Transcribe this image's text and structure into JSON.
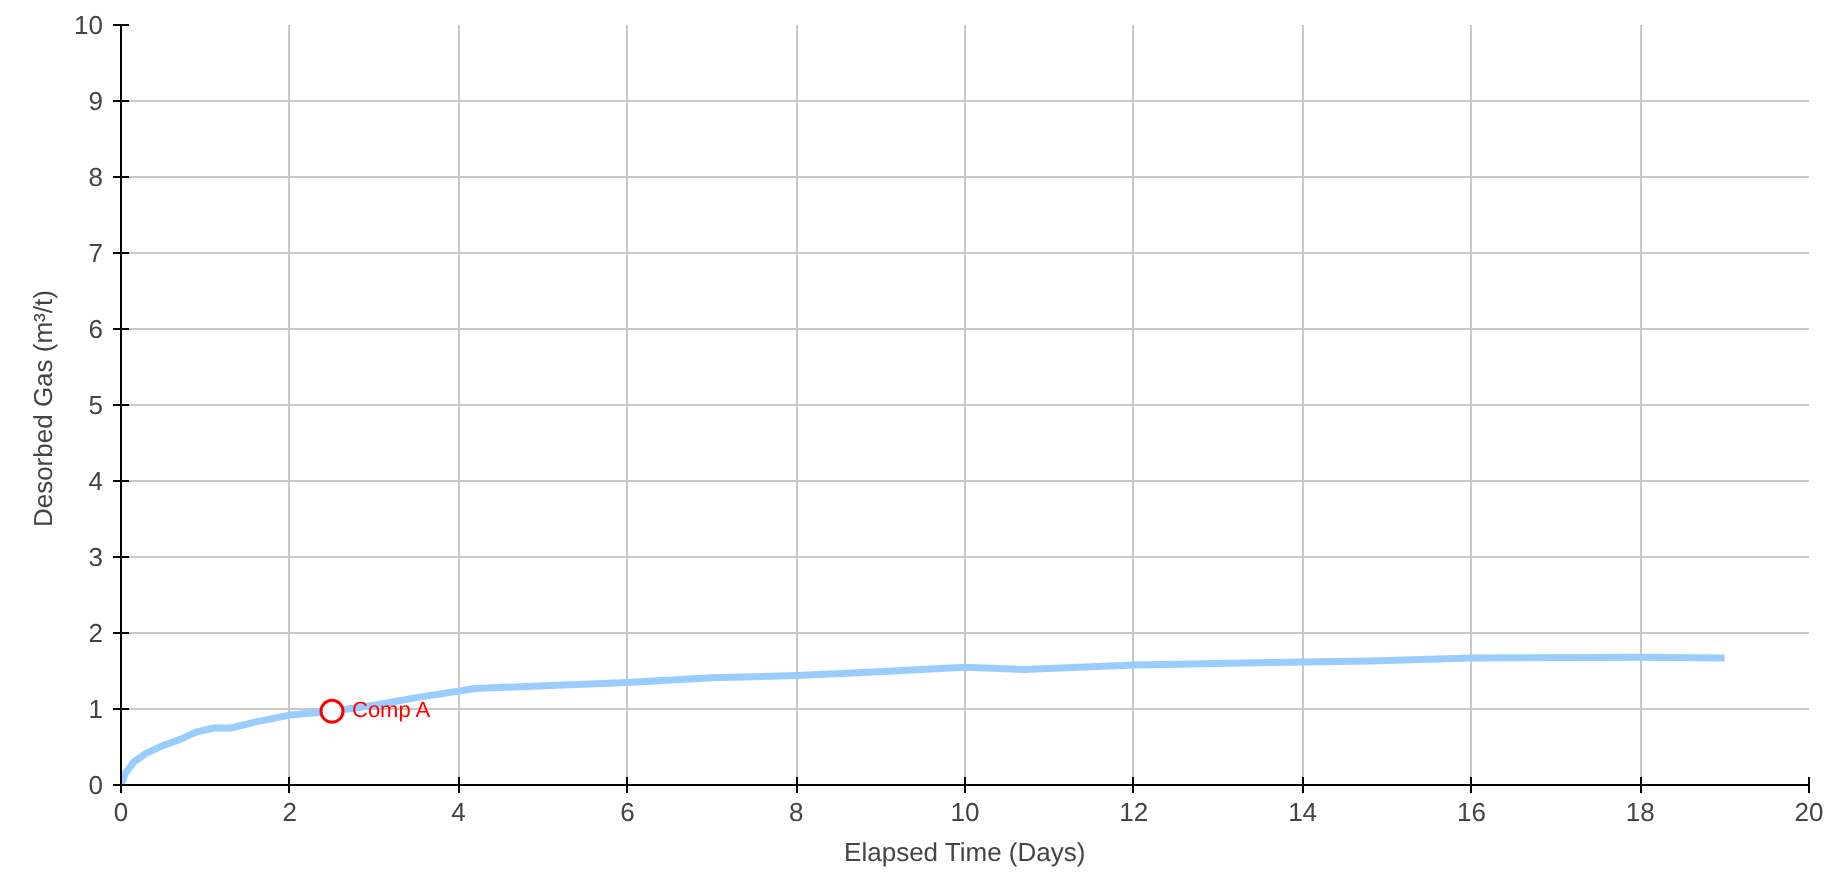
{
  "chart_data": {
    "type": "line",
    "xlabel": "Elapsed Time (Days)",
    "ylabel": "Desorbed Gas  (m³/t)",
    "xlim": [
      0,
      20
    ],
    "ylim": [
      0,
      10
    ],
    "xticks": [
      0,
      2,
      4,
      6,
      8,
      10,
      12,
      14,
      16,
      18,
      20
    ],
    "yticks": [
      0,
      1,
      2,
      3,
      4,
      5,
      6,
      7,
      8,
      9,
      10
    ],
    "grid": true,
    "series": [
      {
        "color": "#99ccff",
        "marker": "none",
        "x": [
          0,
          0.05,
          0.15,
          0.3,
          0.5,
          0.7,
          0.9,
          1.1,
          1.3,
          1.6,
          2,
          2.5,
          3,
          3.5,
          4.2,
          6,
          7,
          8,
          8.8,
          10,
          10.7,
          12,
          14,
          14.8,
          16,
          18,
          19
        ],
        "values": [
          0,
          0.15,
          0.3,
          0.42,
          0.52,
          0.6,
          0.7,
          0.75,
          0.75,
          0.83,
          0.92,
          0.97,
          1.05,
          1.15,
          1.27,
          1.35,
          1.41,
          1.44,
          1.48,
          1.55,
          1.52,
          1.58,
          1.62,
          1.63,
          1.67,
          1.68,
          1.67
        ]
      },
      {
        "type": "scatter",
        "name": "Comp A",
        "color": "#ff0000",
        "marker": "circle",
        "x": [
          2.5
        ],
        "values": [
          0.97
        ]
      }
    ]
  }
}
